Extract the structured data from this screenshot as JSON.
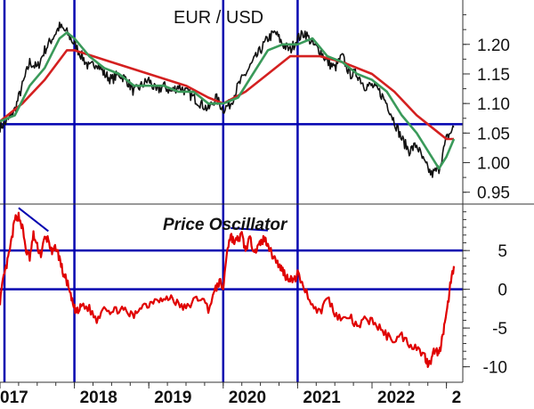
{
  "chart_data": [
    {
      "type": "line",
      "title": "EUR / USD",
      "ylim": [
        0.93,
        1.275
      ],
      "xlim": [
        2017.0,
        2023.22
      ],
      "y_ticks": [
        "1.20",
        "1.15",
        "1.10",
        "1.05",
        "1.00",
        "0.95"
      ],
      "y_tick_values": [
        1.2,
        1.15,
        1.1,
        1.05,
        1.0,
        0.95
      ],
      "horizontal_lines": [
        1.065
      ],
      "vertical_lines": [
        2017.06,
        2018.0,
        2020.0,
        2021.0
      ],
      "colors": {
        "price": "#111111",
        "short_ma": "#3a9a5a",
        "long_ma": "#d42020",
        "guides": "#0000b0"
      },
      "series": [
        {
          "key": "price",
          "x": [
            2017.0,
            2017.1,
            2017.2,
            2017.3,
            2017.4,
            2017.5,
            2017.6,
            2017.7,
            2017.8,
            2017.9,
            2018.0,
            2018.1,
            2018.2,
            2018.3,
            2018.4,
            2018.5,
            2018.6,
            2018.7,
            2018.8,
            2018.9,
            2019.0,
            2019.1,
            2019.2,
            2019.3,
            2019.4,
            2019.5,
            2019.6,
            2019.7,
            2019.8,
            2019.9,
            2020.0,
            2020.1,
            2020.2,
            2020.3,
            2020.4,
            2020.5,
            2020.6,
            2020.7,
            2020.8,
            2020.9,
            2021.0,
            2021.1,
            2021.2,
            2021.3,
            2021.4,
            2021.5,
            2021.6,
            2021.7,
            2021.8,
            2021.9,
            2022.0,
            2022.1,
            2022.2,
            2022.3,
            2022.4,
            2022.5,
            2022.6,
            2022.7,
            2022.8,
            2022.9,
            2023.0,
            2023.1
          ],
          "values": [
            1.06,
            1.07,
            1.09,
            1.13,
            1.17,
            1.16,
            1.19,
            1.21,
            1.23,
            1.22,
            1.2,
            1.18,
            1.16,
            1.17,
            1.15,
            1.14,
            1.15,
            1.14,
            1.12,
            1.13,
            1.14,
            1.12,
            1.13,
            1.12,
            1.13,
            1.12,
            1.11,
            1.1,
            1.09,
            1.11,
            1.09,
            1.1,
            1.13,
            1.15,
            1.17,
            1.19,
            1.21,
            1.22,
            1.2,
            1.19,
            1.21,
            1.22,
            1.2,
            1.19,
            1.17,
            1.16,
            1.18,
            1.15,
            1.15,
            1.13,
            1.13,
            1.12,
            1.1,
            1.07,
            1.04,
            1.02,
            1.03,
            1.0,
            0.98,
            0.99,
            1.04,
            1.06
          ]
        },
        {
          "key": "short_ma",
          "x": [
            2017.0,
            2017.2,
            2017.4,
            2017.6,
            2017.8,
            2017.9,
            2018.0,
            2018.2,
            2018.4,
            2018.6,
            2018.8,
            2019.0,
            2019.2,
            2019.4,
            2019.6,
            2019.8,
            2020.0,
            2020.2,
            2020.4,
            2020.6,
            2020.8,
            2021.0,
            2021.2,
            2021.4,
            2021.6,
            2021.8,
            2022.0,
            2022.2,
            2022.4,
            2022.6,
            2022.8,
            2022.9,
            2023.0,
            2023.1
          ],
          "values": [
            1.07,
            1.08,
            1.13,
            1.16,
            1.21,
            1.22,
            1.21,
            1.18,
            1.16,
            1.15,
            1.13,
            1.13,
            1.13,
            1.12,
            1.12,
            1.1,
            1.1,
            1.11,
            1.15,
            1.19,
            1.2,
            1.2,
            1.21,
            1.18,
            1.17,
            1.15,
            1.14,
            1.12,
            1.08,
            1.05,
            1.01,
            0.99,
            1.01,
            1.04
          ]
        },
        {
          "key": "long_ma",
          "x": [
            2017.0,
            2017.3,
            2017.6,
            2017.9,
            2018.0,
            2018.5,
            2019.0,
            2019.5,
            2019.8,
            2020.0,
            2020.3,
            2020.6,
            2020.9,
            2021.0,
            2021.3,
            2021.6,
            2022.0,
            2022.3,
            2022.6,
            2022.9,
            2023.0,
            2023.1
          ],
          "values": [
            1.07,
            1.1,
            1.14,
            1.19,
            1.19,
            1.17,
            1.15,
            1.13,
            1.11,
            1.1,
            1.12,
            1.15,
            1.18,
            1.18,
            1.18,
            1.17,
            1.15,
            1.12,
            1.08,
            1.05,
            1.04,
            1.04
          ]
        }
      ]
    },
    {
      "type": "line",
      "title": "Price Oscillator",
      "ylim": [
        -12,
        11
      ],
      "xlim": [
        2017.0,
        2023.22
      ],
      "y_ticks": [
        "5",
        "0",
        "-5",
        "-10"
      ],
      "y_tick_values": [
        5,
        0,
        -5,
        -10
      ],
      "horizontal_lines": [
        5,
        0
      ],
      "vertical_lines": [
        2017.06,
        2018.0,
        2020.0,
        2021.0
      ],
      "x_ticks": [
        "017",
        "2018",
        "2019",
        "2020",
        "2021",
        "2022",
        "2"
      ],
      "x_tick_values": [
        2017.0,
        2018.0,
        2019.0,
        2020.0,
        2021.0,
        2022.0,
        2023.0
      ],
      "divergence_lines": [
        {
          "x": [
            2017.25,
            2017.65
          ],
          "y": [
            10.5,
            7.5
          ]
        },
        {
          "x": [
            2020.1,
            2020.6
          ],
          "y": [
            7.9,
            7.6
          ]
        }
      ],
      "colors": {
        "oscillator": "#e00000",
        "guides": "#0000b0",
        "divergence": "#0000b0"
      },
      "series": [
        {
          "key": "oscillator",
          "x": [
            2017.0,
            2017.05,
            2017.1,
            2017.15,
            2017.2,
            2017.25,
            2017.3,
            2017.35,
            2017.4,
            2017.45,
            2017.5,
            2017.55,
            2017.6,
            2017.65,
            2017.7,
            2017.75,
            2017.8,
            2017.85,
            2017.9,
            2017.95,
            2018.0,
            2018.05,
            2018.1,
            2018.2,
            2018.3,
            2018.4,
            2018.5,
            2018.6,
            2018.7,
            2018.8,
            2018.9,
            2019.0,
            2019.1,
            2019.2,
            2019.3,
            2019.4,
            2019.5,
            2019.6,
            2019.7,
            2019.8,
            2019.9,
            2019.95,
            2020.0,
            2020.05,
            2020.1,
            2020.15,
            2020.2,
            2020.25,
            2020.3,
            2020.35,
            2020.4,
            2020.45,
            2020.5,
            2020.55,
            2020.6,
            2020.65,
            2020.7,
            2020.75,
            2020.8,
            2020.85,
            2020.9,
            2020.95,
            2021.0,
            2021.1,
            2021.2,
            2021.3,
            2021.4,
            2021.5,
            2021.6,
            2021.7,
            2021.8,
            2021.9,
            2022.0,
            2022.1,
            2022.2,
            2022.3,
            2022.4,
            2022.5,
            2022.6,
            2022.7,
            2022.75,
            2022.8,
            2022.85,
            2022.9,
            2022.95,
            2023.0,
            2023.05,
            2023.1
          ],
          "values": [
            -1.5,
            1.5,
            3.5,
            6.0,
            9.0,
            9.5,
            8.0,
            5.0,
            4.0,
            7.0,
            5.5,
            4.5,
            6.5,
            6.5,
            4.5,
            5.5,
            4.0,
            2.0,
            1.0,
            -1.0,
            -2.5,
            -3.0,
            -2.0,
            -2.5,
            -4.0,
            -2.0,
            -3.0,
            -2.5,
            -3.0,
            -3.5,
            -2.0,
            -2.0,
            -1.0,
            -1.5,
            -1.0,
            -2.0,
            -2.5,
            -1.5,
            -1.0,
            -2.5,
            0.0,
            1.0,
            0.0,
            5.0,
            7.0,
            6.0,
            6.5,
            7.0,
            5.0,
            6.5,
            5.5,
            5.0,
            6.0,
            6.5,
            6.0,
            4.5,
            4.0,
            3.0,
            2.5,
            1.5,
            1.5,
            1.0,
            2.0,
            0.0,
            -2.0,
            -3.0,
            -1.0,
            -3.0,
            -4.0,
            -3.5,
            -5.0,
            -4.0,
            -4.0,
            -5.0,
            -6.0,
            -6.5,
            -6.0,
            -7.0,
            -7.5,
            -8.5,
            -9.5,
            -9.0,
            -7.5,
            -8.5,
            -6.0,
            -3.5,
            0.5,
            3.0
          ]
        }
      ]
    }
  ]
}
